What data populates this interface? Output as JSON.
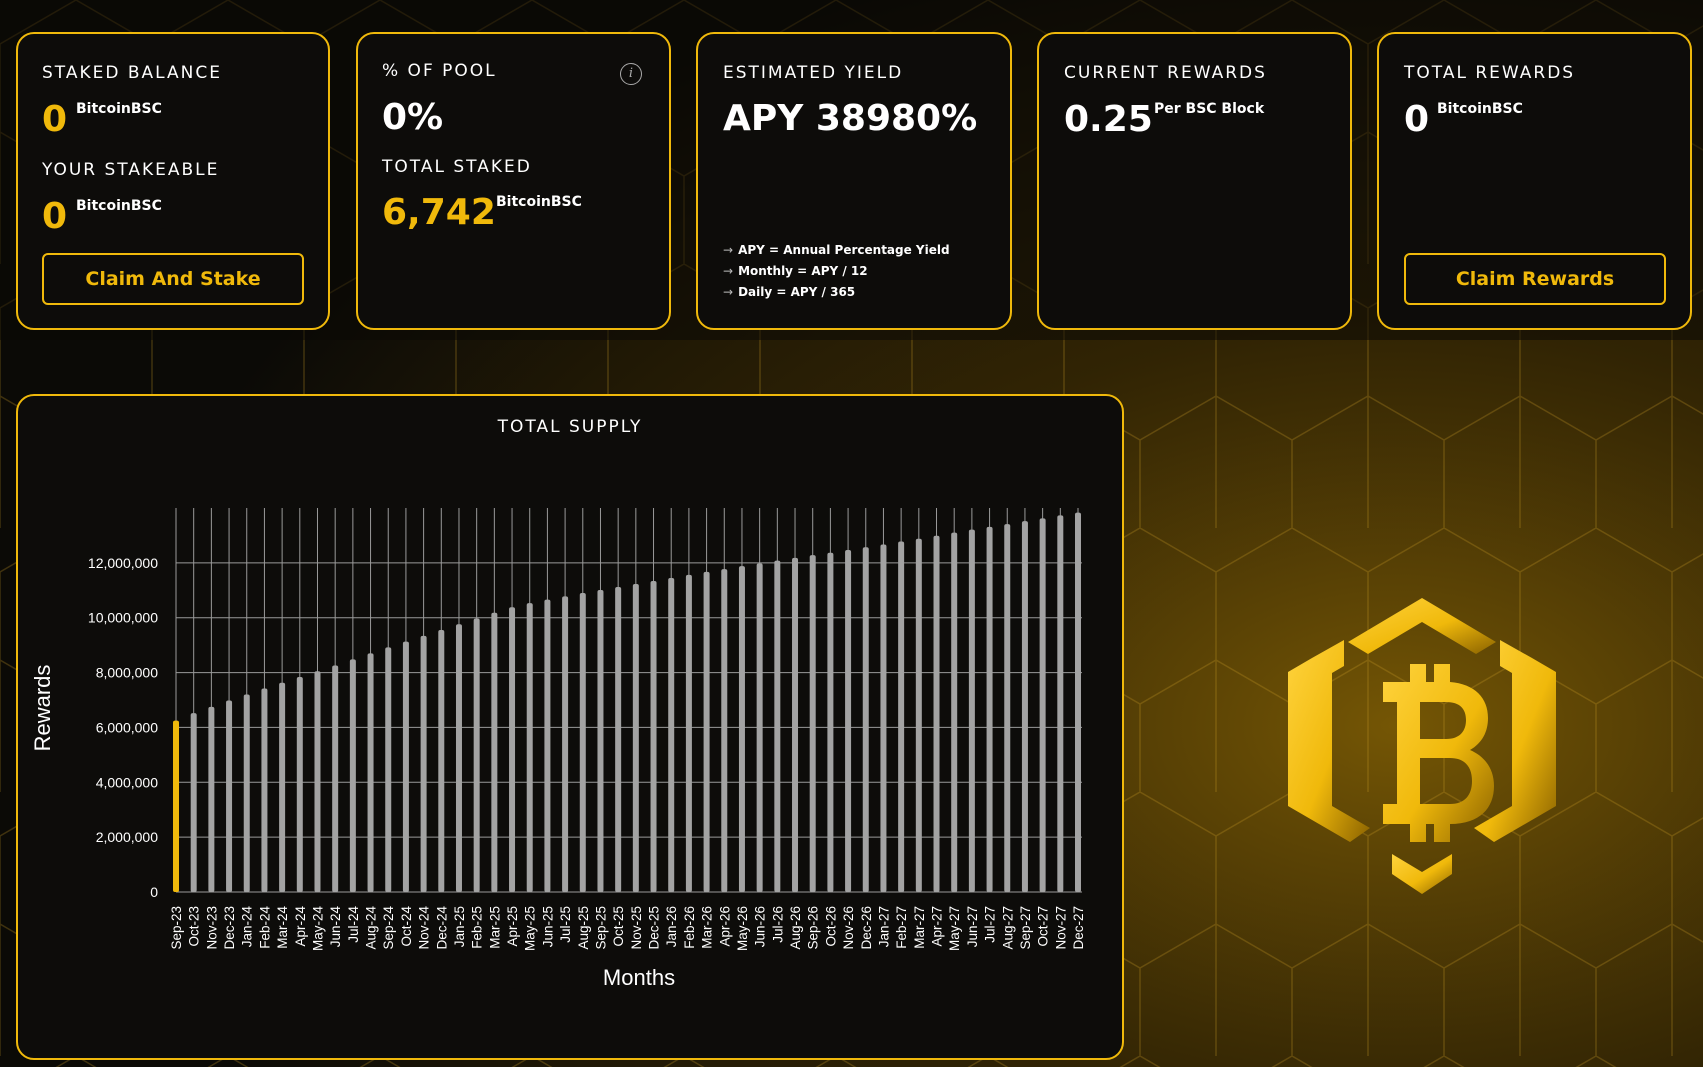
{
  "cards": {
    "staked": {
      "label": "STAKED BALANCE",
      "value": "0",
      "unit": "BitcoinBSC",
      "stakeable_label": "YOUR STAKEABLE",
      "stakeable_value": "0",
      "stakeable_unit": "BitcoinBSC",
      "button": "Claim And Stake"
    },
    "pool": {
      "label": "% OF POOL",
      "value": "0%",
      "total_label": "TOTAL STAKED",
      "total_value": "6,742",
      "total_unit": "BitcoinBSC",
      "info_icon": "info-icon"
    },
    "yield": {
      "label": "ESTIMATED YIELD",
      "value": "APY 38980%",
      "notes": [
        "APY = Annual Percentage Yield",
        "Monthly = APY / 12",
        "Daily = APY / 365"
      ]
    },
    "current": {
      "label": "CURRENT REWARDS",
      "value": "0.25",
      "unit": "Per BSC Block"
    },
    "total": {
      "label": "TOTAL REWARDS",
      "value": "0",
      "unit": "BitcoinBSC",
      "button": "Claim Rewards"
    }
  },
  "colors": {
    "accent": "#f0b90b",
    "bar": "#a3a3a3",
    "highlight_bar": "#f0b90b"
  },
  "chart_data": {
    "type": "bar",
    "title": "TOTAL SUPPLY",
    "xlabel": "Months",
    "ylabel": "Rewards",
    "ylim": [
      0,
      14000000
    ],
    "yticks": [
      0,
      2000000,
      4000000,
      6000000,
      8000000,
      10000000,
      12000000
    ],
    "ytick_labels": [
      "0",
      "2,000,000",
      "4,000,000",
      "6,000,000",
      "8,000,000",
      "10,000,000",
      "12,000,000"
    ],
    "grid": true,
    "highlighted_category": "Sep-23",
    "categories": [
      "Sep-23",
      "Oct-23",
      "Nov-23",
      "Dec-23",
      "Jan-24",
      "Feb-24",
      "Mar-24",
      "Apr-24",
      "May-24",
      "Jun-24",
      "Jul-24",
      "Aug-24",
      "Sep-24",
      "Oct-24",
      "Nov-24",
      "Dec-24",
      "Jan-25",
      "Feb-25",
      "Mar-25",
      "Apr-25",
      "May-25",
      "Jun-25",
      "Jul-25",
      "Aug-25",
      "Sep-25",
      "Oct-25",
      "Nov-25",
      "Dec-25",
      "Jan-26",
      "Feb-26",
      "Mar-26",
      "Apr-26",
      "May-26",
      "Jun-26",
      "Jul-26",
      "Aug-26",
      "Sep-26",
      "Oct-26",
      "Nov-26",
      "Dec-26",
      "Jan-27",
      "Feb-27",
      "Mar-27",
      "Apr-27",
      "May-27",
      "Jun-27",
      "Jul-27",
      "Aug-27",
      "Sep-27",
      "Oct-27",
      "Nov-27",
      "Dec-27"
    ],
    "values": [
      6250000,
      6520000,
      6750000,
      6980000,
      7200000,
      7420000,
      7630000,
      7840000,
      8050000,
      8260000,
      8480000,
      8700000,
      8920000,
      9130000,
      9340000,
      9550000,
      9760000,
      9970000,
      10180000,
      10380000,
      10530000,
      10660000,
      10780000,
      10900000,
      11010000,
      11120000,
      11230000,
      11340000,
      11450000,
      11560000,
      11670000,
      11770000,
      11880000,
      11980000,
      12080000,
      12180000,
      12280000,
      12370000,
      12470000,
      12570000,
      12670000,
      12780000,
      12880000,
      12990000,
      13100000,
      13210000,
      13310000,
      13410000,
      13520000,
      13620000,
      13730000,
      13830000
    ]
  },
  "logo": {
    "name": "bitcoin-bsc-logo"
  }
}
